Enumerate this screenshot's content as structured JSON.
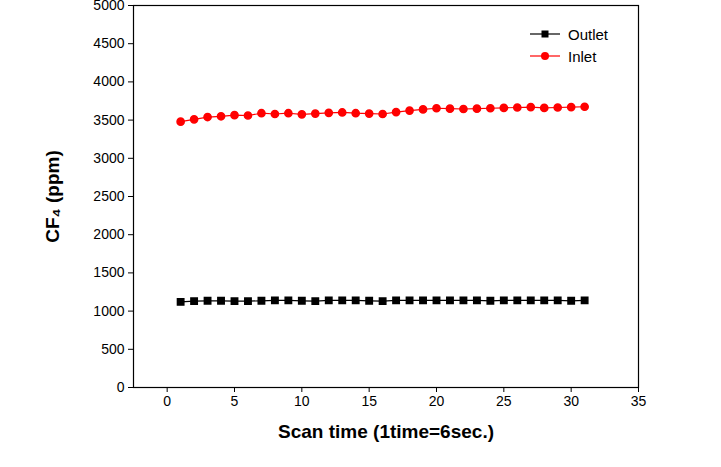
{
  "chart_data": {
    "type": "line",
    "x_label": "Scan time (1time=6sec.)",
    "y_label": "CF₄ (ppm)",
    "x": [
      1,
      2,
      3,
      4,
      5,
      6,
      7,
      8,
      9,
      10,
      11,
      12,
      13,
      14,
      15,
      16,
      17,
      18,
      19,
      20,
      21,
      22,
      23,
      24,
      25,
      26,
      27,
      28,
      29,
      30,
      31
    ],
    "series": [
      {
        "name": "Outlet",
        "color": "#000000",
        "marker": "square",
        "line_style": "solid",
        "values": [
          1120,
          1130,
          1135,
          1135,
          1130,
          1130,
          1135,
          1140,
          1140,
          1135,
          1130,
          1140,
          1140,
          1140,
          1135,
          1130,
          1140,
          1140,
          1140,
          1140,
          1140,
          1140,
          1140,
          1135,
          1140,
          1140,
          1140,
          1140,
          1140,
          1135,
          1140
        ]
      },
      {
        "name": "Inlet",
        "color": "#ff0000",
        "marker": "circle",
        "line_style": "solid",
        "values": [
          3480,
          3510,
          3540,
          3550,
          3565,
          3560,
          3590,
          3580,
          3590,
          3575,
          3585,
          3595,
          3600,
          3590,
          3585,
          3580,
          3605,
          3625,
          3640,
          3655,
          3650,
          3645,
          3650,
          3655,
          3660,
          3665,
          3670,
          3660,
          3665,
          3670,
          3675
        ]
      }
    ],
    "xlim": [
      -2.5,
      35
    ],
    "xticks": [
      0,
      5,
      10,
      15,
      20,
      25,
      30,
      35
    ],
    "ylim": [
      0,
      5000
    ],
    "yticks": [
      0,
      500,
      1000,
      1500,
      2000,
      2500,
      3000,
      3500,
      4000,
      4500,
      5000
    ],
    "grid": false,
    "legend": "upper right"
  }
}
